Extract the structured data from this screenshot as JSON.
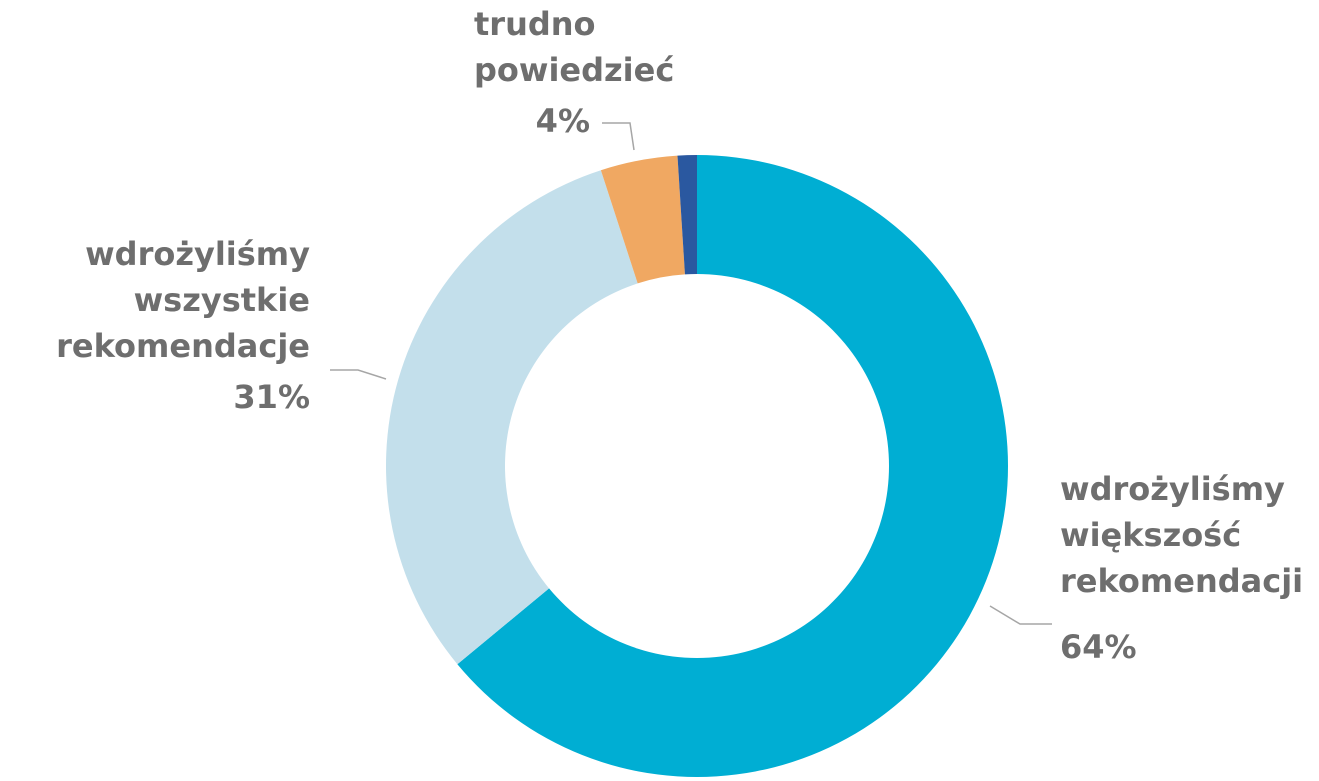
{
  "chart_data": {
    "type": "donut",
    "categories": [
      "wdrożyliśmy większość rekomendacji",
      "wdrożyliśmy wszystkie rekomendacje",
      "trudno powiedzieć",
      null
    ],
    "values": [
      64,
      31,
      4,
      1
    ],
    "value_labels": [
      "64%",
      "31%",
      "4%",
      null
    ],
    "colors": [
      "#00aed3",
      "#c3dfeb",
      "#f0a862",
      "#2a58a0"
    ]
  }
}
